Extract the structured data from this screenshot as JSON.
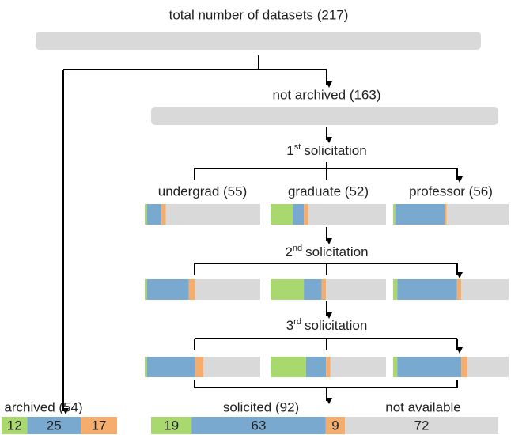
{
  "header": {
    "title": "total number of datasets (217)"
  },
  "not_archived": {
    "label": "not archived (163)"
  },
  "segment_colors": [
    "#a9d86e",
    "#7aa9d0",
    "#f5ad6e",
    "#d9d9d9"
  ],
  "solicitations": [
    {
      "number": "1",
      "suffix": "st",
      "word": "solicitation"
    },
    {
      "number": "2",
      "suffix": "nd",
      "word": "solicitation"
    },
    {
      "number": "3",
      "suffix": "rd",
      "word": "solicitation"
    }
  ],
  "groups": [
    {
      "label": "undergrad (55)"
    },
    {
      "label": "graduate (52)"
    },
    {
      "label": "professor (56)"
    }
  ],
  "rounds": [
    {
      "groups": [
        [
          1,
          7,
          2,
          45
        ],
        [
          10,
          5,
          2,
          35
        ],
        [
          1,
          24,
          1,
          30
        ]
      ]
    },
    {
      "groups": [
        [
          1,
          20,
          3,
          31
        ],
        [
          15,
          8,
          2,
          27
        ],
        [
          2,
          29,
          2,
          23
        ]
      ]
    },
    {
      "groups": [
        [
          1,
          23,
          4,
          27
        ],
        [
          16,
          9,
          2,
          25
        ],
        [
          2,
          31,
          3,
          20
        ]
      ]
    }
  ],
  "archived": {
    "label": "archived (54)",
    "values": [
      12,
      25,
      17
    ]
  },
  "outcome": {
    "labels": [
      "solicited (92)",
      "not available"
    ],
    "values": [
      19,
      63,
      9,
      72
    ]
  }
}
